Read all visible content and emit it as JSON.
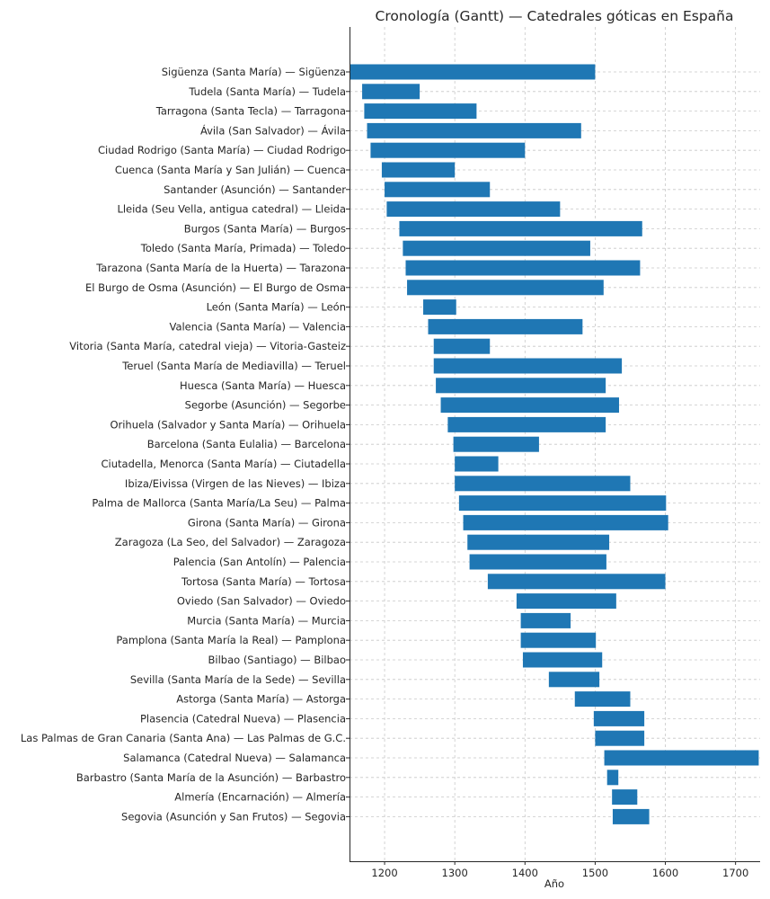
{
  "chart_data": {
    "type": "bar",
    "orientation": "horizontal-gantt",
    "title": "Cronología (Gantt) — Catedrales góticas en España",
    "xlabel": "Año",
    "ylabel": "",
    "xlim": [
      1150,
      1735
    ],
    "xticks": [
      1200,
      1300,
      1400,
      1500,
      1600,
      1700
    ],
    "grid": true,
    "bar_color": "#1f77b4",
    "bars": [
      {
        "label": "Sigüenza (Santa María) — Sigüenza",
        "start": 1150,
        "end": 1500
      },
      {
        "label": "Tudela (Santa María) — Tudela",
        "start": 1168,
        "end": 1250
      },
      {
        "label": "Tarragona (Santa Tecla) — Tarragona",
        "start": 1171,
        "end": 1331
      },
      {
        "label": "Ávila (San Salvador) — Ávila",
        "start": 1175,
        "end": 1480
      },
      {
        "label": "Ciudad Rodrigo (Santa María) — Ciudad Rodrigo",
        "start": 1180,
        "end": 1400
      },
      {
        "label": "Cuenca (Santa María y San Julián) — Cuenca",
        "start": 1196,
        "end": 1300
      },
      {
        "label": "Santander (Asunción) — Santander",
        "start": 1200,
        "end": 1350
      },
      {
        "label": "Lleida (Seu Vella, antigua catedral) — Lleida",
        "start": 1203,
        "end": 1450
      },
      {
        "label": "Burgos (Santa María) — Burgos",
        "start": 1221,
        "end": 1567
      },
      {
        "label": "Toledo (Santa María, Primada) — Toledo",
        "start": 1226,
        "end": 1493
      },
      {
        "label": "Tarazona (Santa María de la Huerta) — Tarazona",
        "start": 1230,
        "end": 1564
      },
      {
        "label": "El Burgo de Osma (Asunción) — El Burgo de Osma",
        "start": 1232,
        "end": 1512
      },
      {
        "label": "León (Santa María) — León",
        "start": 1255,
        "end": 1302
      },
      {
        "label": "Valencia (Santa María) — Valencia",
        "start": 1262,
        "end": 1482
      },
      {
        "label": "Vitoria (Santa María, catedral vieja) — Vitoria-Gasteiz",
        "start": 1270,
        "end": 1350
      },
      {
        "label": "Teruel (Santa María de Mediavilla) — Teruel",
        "start": 1270,
        "end": 1538
      },
      {
        "label": "Huesca (Santa María) — Huesca",
        "start": 1273,
        "end": 1515
      },
      {
        "label": "Segorbe (Asunción) — Segorbe",
        "start": 1280,
        "end": 1534
      },
      {
        "label": "Orihuela (Salvador y Santa María) — Orihuela",
        "start": 1290,
        "end": 1515
      },
      {
        "label": "Barcelona (Santa Eulalia) — Barcelona",
        "start": 1298,
        "end": 1420
      },
      {
        "label": "Ciutadella, Menorca (Santa María) — Ciutadella",
        "start": 1300,
        "end": 1362
      },
      {
        "label": "Ibiza/Eivissa (Virgen de las Nieves) — Ibiza",
        "start": 1300,
        "end": 1550
      },
      {
        "label": "Palma de Mallorca (Santa María/La Seu) — Palma",
        "start": 1306,
        "end": 1601
      },
      {
        "label": "Girona (Santa María) — Girona",
        "start": 1312,
        "end": 1604
      },
      {
        "label": "Zaragoza (La Seo, del Salvador) — Zaragoza",
        "start": 1318,
        "end": 1520
      },
      {
        "label": "Palencia (San Antolín) — Palencia",
        "start": 1321,
        "end": 1516
      },
      {
        "label": "Tortosa (Santa María) — Tortosa",
        "start": 1347,
        "end": 1600
      },
      {
        "label": "Oviedo (San Salvador) — Oviedo",
        "start": 1388,
        "end": 1530
      },
      {
        "label": "Murcia (Santa María) — Murcia",
        "start": 1394,
        "end": 1465
      },
      {
        "label": "Pamplona (Santa María la Real) — Pamplona",
        "start": 1394,
        "end": 1501
      },
      {
        "label": "Bilbao (Santiago) — Bilbao",
        "start": 1397,
        "end": 1510
      },
      {
        "label": "Sevilla (Santa María de la Sede) — Sevilla",
        "start": 1434,
        "end": 1506
      },
      {
        "label": "Astorga (Santa María) — Astorga",
        "start": 1471,
        "end": 1550
      },
      {
        "label": "Plasencia (Catedral Nueva) — Plasencia",
        "start": 1498,
        "end": 1570
      },
      {
        "label": "Las Palmas de Gran Canaria (Santa Ana) — Las Palmas de G.C.",
        "start": 1500,
        "end": 1570
      },
      {
        "label": "Salamanca (Catedral Nueva) — Salamanca",
        "start": 1513,
        "end": 1733
      },
      {
        "label": "Barbastro (Santa María de la Asunción) — Barbastro",
        "start": 1517,
        "end": 1533
      },
      {
        "label": "Almería (Encarnación) — Almería",
        "start": 1524,
        "end": 1560
      },
      {
        "label": "Segovia (Asunción y San Frutos) — Segovia",
        "start": 1525,
        "end": 1577
      }
    ]
  }
}
